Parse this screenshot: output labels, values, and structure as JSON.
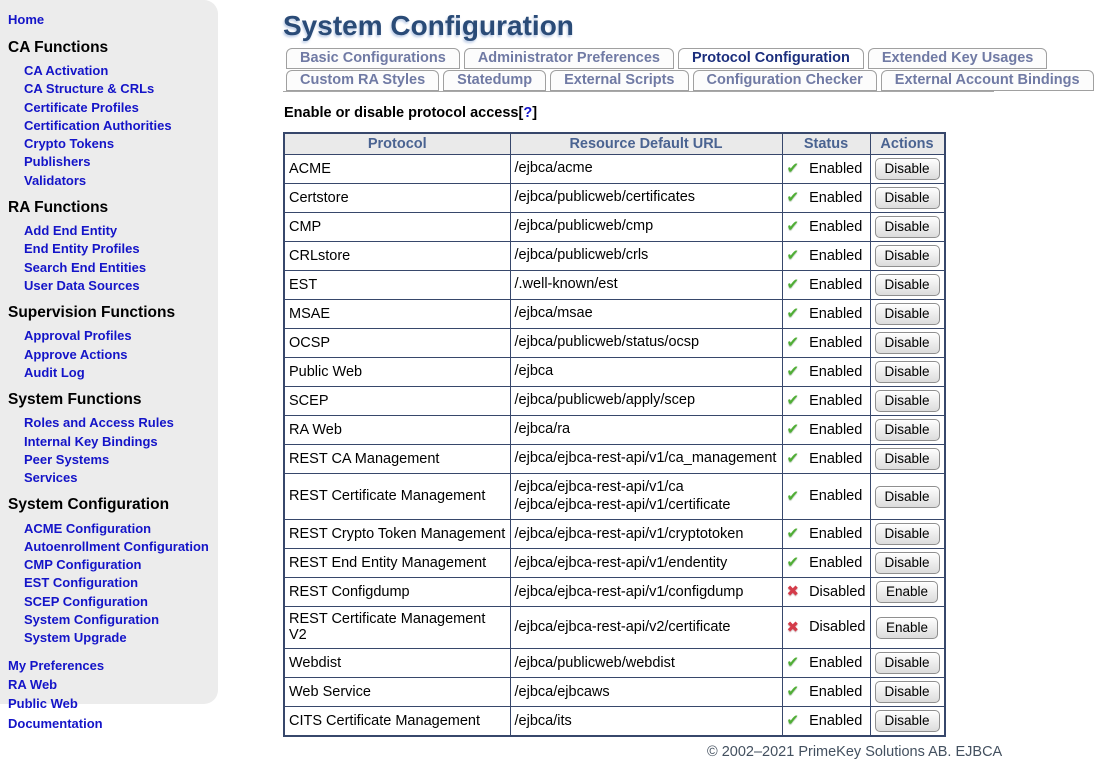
{
  "colors": {
    "link_blue": "#1414c8",
    "title_navy": "#2a4b77",
    "active_tab_blue": "#1b2e7d",
    "inactive_tab_gray": "#707aa4",
    "table_border_navy": "#37476b",
    "header_text_blue": "#4a6391",
    "enabled_green": "#4fae35",
    "disabled_red": "#d43c4a",
    "sidebar_bg": "#ececec"
  },
  "sidebar": {
    "home": "Home",
    "sections": [
      {
        "title": "CA Functions",
        "items": [
          "CA Activation",
          "CA Structure & CRLs",
          "Certificate Profiles",
          "Certification Authorities",
          "Crypto Tokens",
          "Publishers",
          "Validators"
        ]
      },
      {
        "title": "RA Functions",
        "items": [
          "Add End Entity",
          "End Entity Profiles",
          "Search End Entities",
          "User Data Sources"
        ]
      },
      {
        "title": "Supervision Functions",
        "items": [
          "Approval Profiles",
          "Approve Actions",
          "Audit Log"
        ]
      },
      {
        "title": "System Functions",
        "items": [
          "Roles and Access Rules",
          "Internal Key Bindings",
          "Peer Systems",
          "Services"
        ]
      },
      {
        "title": "System Configuration",
        "items": [
          "ACME Configuration",
          "Autoenrollment Configuration",
          "CMP Configuration",
          "EST Configuration",
          "SCEP Configuration",
          "System Configuration",
          "System Upgrade"
        ]
      }
    ],
    "footer_links": [
      "My Preferences",
      "RA Web",
      "Public Web",
      "Documentation"
    ]
  },
  "header": {
    "title": "System Configuration"
  },
  "tabs": {
    "row1": [
      {
        "label": "Basic Configurations",
        "active": false
      },
      {
        "label": "Administrator Preferences",
        "active": false
      },
      {
        "label": "Protocol Configuration",
        "active": true
      },
      {
        "label": "Extended Key Usages",
        "active": false
      }
    ],
    "row2": [
      {
        "label": "Custom RA Styles",
        "active": false
      },
      {
        "label": "Statedump",
        "active": false
      },
      {
        "label": "External Scripts",
        "active": false
      },
      {
        "label": "Configuration Checker",
        "active": false
      },
      {
        "label": "External Account Bindings",
        "active": false
      }
    ]
  },
  "intro": {
    "text": "Enable or disable protocol access",
    "bracket_open": "[",
    "help": "?",
    "bracket_close": "]"
  },
  "icons": {
    "check": "✔",
    "cross": "✖"
  },
  "table": {
    "columns": [
      "Protocol",
      "Resource Default URL",
      "Status",
      "Actions"
    ],
    "rows": [
      {
        "protocol": "ACME",
        "url": "/ejbca/acme",
        "status": "Enabled",
        "icon": "check",
        "action": "Disable"
      },
      {
        "protocol": "Certstore",
        "url": "/ejbca/publicweb/certificates",
        "status": "Enabled",
        "icon": "check",
        "action": "Disable"
      },
      {
        "protocol": "CMP",
        "url": "/ejbca/publicweb/cmp",
        "status": "Enabled",
        "icon": "check",
        "action": "Disable"
      },
      {
        "protocol": "CRLstore",
        "url": "/ejbca/publicweb/crls",
        "status": "Enabled",
        "icon": "check",
        "action": "Disable"
      },
      {
        "protocol": "EST",
        "url": "/.well-known/est",
        "status": "Enabled",
        "icon": "check",
        "action": "Disable"
      },
      {
        "protocol": "MSAE",
        "url": "/ejbca/msae",
        "status": "Enabled",
        "icon": "check",
        "action": "Disable"
      },
      {
        "protocol": "OCSP",
        "url": "/ejbca/publicweb/status/ocsp",
        "status": "Enabled",
        "icon": "check",
        "action": "Disable"
      },
      {
        "protocol": "Public Web",
        "url": "/ejbca",
        "status": "Enabled",
        "icon": "check",
        "action": "Disable"
      },
      {
        "protocol": "SCEP",
        "url": "/ejbca/publicweb/apply/scep",
        "status": "Enabled",
        "icon": "check",
        "action": "Disable"
      },
      {
        "protocol": "RA Web",
        "url": "/ejbca/ra",
        "status": "Enabled",
        "icon": "check",
        "action": "Disable"
      },
      {
        "protocol": "REST CA Management",
        "url": "/ejbca/ejbca-rest-api/v1/ca_management",
        "status": "Enabled",
        "icon": "check",
        "action": "Disable"
      },
      {
        "protocol": "REST Certificate Management",
        "url": "/ejbca/ejbca-rest-api/v1/ca\n/ejbca/ejbca-rest-api/v1/certificate",
        "status": "Enabled",
        "icon": "check",
        "action": "Disable"
      },
      {
        "protocol": "REST Crypto Token Management",
        "url": "/ejbca/ejbca-rest-api/v1/cryptotoken",
        "status": "Enabled",
        "icon": "check",
        "action": "Disable"
      },
      {
        "protocol": "REST End Entity Management",
        "url": "/ejbca/ejbca-rest-api/v1/endentity",
        "status": "Enabled",
        "icon": "check",
        "action": "Disable"
      },
      {
        "protocol": "REST Configdump",
        "url": "/ejbca/ejbca-rest-api/v1/configdump",
        "status": "Disabled",
        "icon": "cross",
        "action": "Enable"
      },
      {
        "protocol": "REST Certificate Management V2",
        "url": "/ejbca/ejbca-rest-api/v2/certificate",
        "status": "Disabled",
        "icon": "cross",
        "action": "Enable"
      },
      {
        "protocol": "Webdist",
        "url": "/ejbca/publicweb/webdist",
        "status": "Enabled",
        "icon": "check",
        "action": "Disable"
      },
      {
        "protocol": "Web Service",
        "url": "/ejbca/ejbcaws",
        "status": "Enabled",
        "icon": "check",
        "action": "Disable"
      },
      {
        "protocol": "CITS Certificate Management",
        "url": "/ejbca/its",
        "status": "Enabled",
        "icon": "check",
        "action": "Disable"
      }
    ]
  },
  "footer": {
    "copyright": "© 2002–2021 PrimeKey Solutions AB. EJBCA"
  }
}
